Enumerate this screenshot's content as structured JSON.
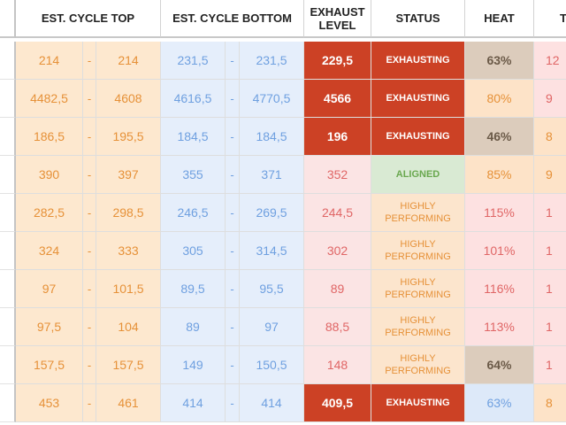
{
  "headers": {
    "est_cycle_top": "EST. CYCLE TOP",
    "est_cycle_bottom": "EST. CYCLE BOTTOM",
    "exhaust_level": "EXHAUST LEVEL",
    "status": "STATUS",
    "heat": "HEAT",
    "last": "T"
  },
  "colors": {
    "exhaust_red": "#cc4125",
    "aligned_green": "#d9ead3",
    "top_orange": "#e69138",
    "bottom_blue": "#6fa0e0"
  },
  "rows": [
    {
      "top_low": "214",
      "dash1": "-",
      "top_high": "214",
      "bot_low": "231,5",
      "dash2": "-",
      "bot_high": "231,5",
      "exhaust": "229,5",
      "exhaust_style": "red",
      "status": "EXHAUSTING",
      "status_type": "ex",
      "heat": "63%",
      "heat_style": "tan",
      "last": "12",
      "last_style": "pink"
    },
    {
      "top_low": "4482,5",
      "dash1": "-",
      "top_high": "4608",
      "bot_low": "4616,5",
      "dash2": "-",
      "bot_high": "4770,5",
      "exhaust": "4566",
      "exhaust_style": "red",
      "status": "EXHAUSTING",
      "status_type": "ex",
      "heat": "80%",
      "heat_style": "peach",
      "last": "9",
      "last_style": "pink"
    },
    {
      "top_low": "186,5",
      "dash1": "-",
      "top_high": "195,5",
      "bot_low": "184,5",
      "dash2": "-",
      "bot_high": "184,5",
      "exhaust": "196",
      "exhaust_style": "red",
      "status": "EXHAUSTING",
      "status_type": "ex",
      "heat": "46%",
      "heat_style": "tan",
      "last": "8",
      "last_style": "peach"
    },
    {
      "top_low": "390",
      "dash1": "-",
      "top_high": "397",
      "bot_low": "355",
      "dash2": "-",
      "bot_high": "371",
      "exhaust": "352",
      "exhaust_style": "pink",
      "status": "ALIGNED",
      "status_type": "al",
      "heat": "85%",
      "heat_style": "peach",
      "last": "9",
      "last_style": "peach"
    },
    {
      "top_low": "282,5",
      "dash1": "-",
      "top_high": "298,5",
      "bot_low": "246,5",
      "dash2": "-",
      "bot_high": "269,5",
      "exhaust": "244,5",
      "exhaust_style": "pink",
      "status": "HIGHLY PERFORMING",
      "status_type": "hp",
      "heat": "115%",
      "heat_style": "pink",
      "last": "1",
      "last_style": "pink"
    },
    {
      "top_low": "324",
      "dash1": "-",
      "top_high": "333",
      "bot_low": "305",
      "dash2": "-",
      "bot_high": "314,5",
      "exhaust": "302",
      "exhaust_style": "pink",
      "status": "HIGHLY PERFORMING",
      "status_type": "hp",
      "heat": "101%",
      "heat_style": "pink",
      "last": "1",
      "last_style": "pink"
    },
    {
      "top_low": "97",
      "dash1": "-",
      "top_high": "101,5",
      "bot_low": "89,5",
      "dash2": "-",
      "bot_high": "95,5",
      "exhaust": "89",
      "exhaust_style": "pink",
      "status": "HIGHLY PERFORMING",
      "status_type": "hp",
      "heat": "116%",
      "heat_style": "pink",
      "last": "1",
      "last_style": "pink"
    },
    {
      "top_low": "97,5",
      "dash1": "-",
      "top_high": "104",
      "bot_low": "89",
      "dash2": "-",
      "bot_high": "97",
      "exhaust": "88,5",
      "exhaust_style": "pink",
      "status": "HIGHLY PERFORMING",
      "status_type": "hp",
      "heat": "113%",
      "heat_style": "pink",
      "last": "1",
      "last_style": "pink"
    },
    {
      "top_low": "157,5",
      "dash1": "-",
      "top_high": "157,5",
      "bot_low": "149",
      "dash2": "-",
      "bot_high": "150,5",
      "exhaust": "148",
      "exhaust_style": "pink",
      "status": "HIGHLY PERFORMING",
      "status_type": "hp",
      "heat": "64%",
      "heat_style": "tan",
      "last": "1",
      "last_style": "pink"
    },
    {
      "top_low": "453",
      "dash1": "-",
      "top_high": "461",
      "bot_low": "414",
      "dash2": "-",
      "bot_high": "414",
      "exhaust": "409,5",
      "exhaust_style": "red",
      "status": "EXHAUSTING",
      "status_type": "ex",
      "heat": "63%",
      "heat_style": "blue",
      "last": "8",
      "last_style": "peach"
    }
  ]
}
